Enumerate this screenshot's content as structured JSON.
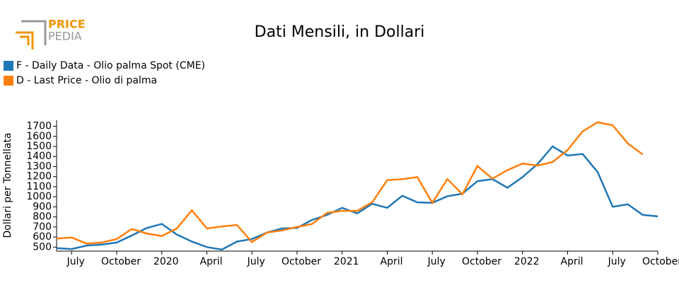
{
  "logo": {
    "line1": "PRICE",
    "line2": "PEDIA"
  },
  "chart_data": {
    "type": "line",
    "title": "Dati Mensili, in Dollari",
    "y_label": "Dollari per Tonnellata",
    "x": [
      "2019-06",
      "2019-07",
      "2019-08",
      "2019-09",
      "2019-10",
      "2019-11",
      "2019-12",
      "2020-01",
      "2020-02",
      "2020-03",
      "2020-04",
      "2020-05",
      "2020-06",
      "2020-07",
      "2020-08",
      "2020-09",
      "2020-10",
      "2020-11",
      "2020-12",
      "2021-01",
      "2021-02",
      "2021-03",
      "2021-04",
      "2021-05",
      "2021-06",
      "2021-07",
      "2021-08",
      "2021-09",
      "2021-10",
      "2021-11",
      "2021-12",
      "2022-01",
      "2022-02",
      "2022-03",
      "2022-04",
      "2022-05",
      "2022-06",
      "2022-07",
      "2022-08",
      "2022-09",
      "2022-10"
    ],
    "series": [
      {
        "name": "F - Daily Data - Olio palma Spot (CME)",
        "color": "#1f77b4",
        "values": [
          490,
          480,
          515,
          525,
          545,
          615,
          690,
          730,
          625,
          555,
          500,
          475,
          555,
          580,
          645,
          685,
          690,
          770,
          820,
          890,
          835,
          930,
          890,
          1010,
          945,
          940,
          1005,
          1030,
          1155,
          1175,
          1090,
          1195,
          1325,
          1500,
          1410,
          1425,
          1245,
          900,
          925,
          820,
          805
        ]
      },
      {
        "name": "D - Last Price - Olio di palma",
        "color": "#ff7f0e",
        "values": [
          585,
          595,
          535,
          545,
          580,
          680,
          635,
          610,
          685,
          865,
          685,
          705,
          720,
          550,
          645,
          665,
          700,
          730,
          840,
          860,
          860,
          945,
          1165,
          1175,
          1195,
          940,
          1175,
          1025,
          1305,
          1180,
          1265,
          1330,
          1310,
          1345,
          1465,
          1650,
          1740,
          1710,
          1530,
          1420,
          null
        ]
      }
    ],
    "xlim": [
      "2019-06",
      "2022-10"
    ],
    "xticks": [
      {
        "value": "2019-07",
        "label": "July"
      },
      {
        "value": "2019-10",
        "label": "October"
      },
      {
        "value": "2020-01",
        "label": "2020"
      },
      {
        "value": "2020-04",
        "label": "April"
      },
      {
        "value": "2020-07",
        "label": "July"
      },
      {
        "value": "2020-10",
        "label": "October"
      },
      {
        "value": "2021-01",
        "label": "2021"
      },
      {
        "value": "2021-04",
        "label": "April"
      },
      {
        "value": "2021-07",
        "label": "July"
      },
      {
        "value": "2021-10",
        "label": "October"
      },
      {
        "value": "2022-01",
        "label": "2022"
      },
      {
        "value": "2022-04",
        "label": "April"
      },
      {
        "value": "2022-07",
        "label": "July"
      },
      {
        "value": "2022-10",
        "label": "October"
      }
    ],
    "ylim": [
      460,
      1760
    ],
    "yticks": [
      500,
      600,
      700,
      800,
      900,
      1000,
      1100,
      1200,
      1300,
      1400,
      1500,
      1600,
      1700
    ]
  }
}
